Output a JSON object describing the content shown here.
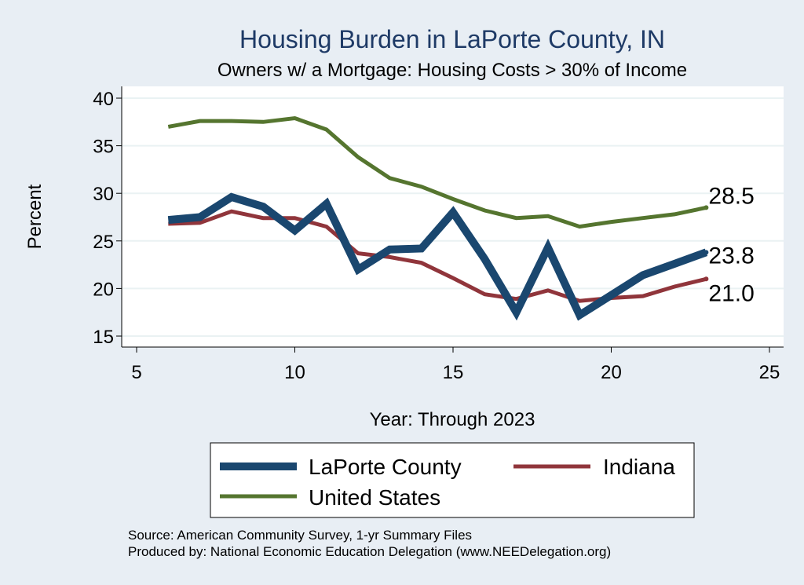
{
  "chart_data": {
    "type": "line",
    "title": "Housing Burden in LaPorte County, IN",
    "subtitle": "Owners w/ a Mortgage: Housing Costs > 30% of Income",
    "xlabel": "Year: Through 2023",
    "ylabel": "Percent",
    "xlim": [
      5,
      25
    ],
    "ylim": [
      15,
      40
    ],
    "xticks": [
      5,
      10,
      15,
      20,
      25
    ],
    "yticks": [
      15,
      20,
      25,
      30,
      35,
      40
    ],
    "grid": true,
    "series": [
      {
        "name": "LaPorte County",
        "color": "#1a476f",
        "x": [
          6,
          7,
          8,
          9,
          10,
          11,
          12,
          13,
          14,
          15,
          16,
          17,
          18,
          19,
          20,
          21,
          22,
          23
        ],
        "values": [
          27.2,
          27.5,
          29.6,
          28.6,
          26.1,
          28.9,
          22.0,
          24.1,
          24.2,
          28.0,
          23.1,
          17.5,
          24.3,
          17.2,
          19.3,
          21.4,
          22.6,
          23.8
        ],
        "end_label": "23.8"
      },
      {
        "name": "Indiana",
        "color": "#90353b",
        "x": [
          6,
          7,
          8,
          9,
          10,
          11,
          12,
          13,
          14,
          15,
          16,
          17,
          18,
          19,
          20,
          21,
          22,
          23
        ],
        "values": [
          26.8,
          26.9,
          28.1,
          27.4,
          27.4,
          26.5,
          23.7,
          23.3,
          22.7,
          21.1,
          19.4,
          18.9,
          19.8,
          18.7,
          19.0,
          19.2,
          20.2,
          21.0
        ],
        "end_label": "21.0"
      },
      {
        "name": "United States",
        "color": "#55752f",
        "x": [
          6,
          7,
          8,
          9,
          10,
          11,
          12,
          13,
          14,
          15,
          16,
          17,
          18,
          19,
          20,
          21,
          22,
          23
        ],
        "values": [
          37.0,
          37.6,
          37.6,
          37.5,
          37.9,
          36.7,
          33.8,
          31.6,
          30.7,
          29.4,
          28.2,
          27.4,
          27.6,
          26.5,
          27.0,
          27.4,
          27.8,
          28.5
        ],
        "end_label": "28.5"
      }
    ],
    "legend": {
      "placement": "bottom",
      "entries": [
        "LaPorte County",
        "Indiana",
        "United States"
      ]
    }
  },
  "footnotes": {
    "source": "Source: American Community Survey, 1-yr Summary Files",
    "produced": "Produced by: National Economic Education Delegation (www.NEEDelegation.org)"
  }
}
